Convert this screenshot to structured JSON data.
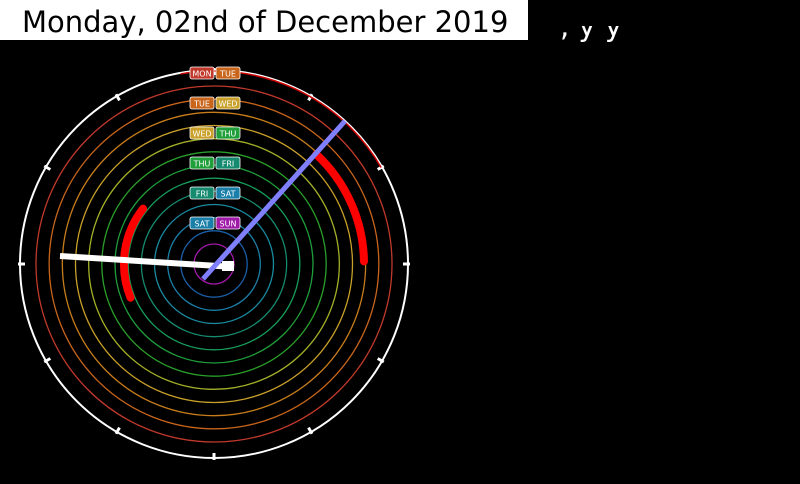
{
  "header": {
    "date_text": "Monday, 02nd of December 2019"
  },
  "clock": {
    "days": [
      {
        "day": "MON",
        "next": "TUE",
        "color": "#c0392b",
        "next_color": "#c8651b"
      },
      {
        "day": "TUE",
        "next": "WED",
        "color": "#c8651b",
        "next_color": "#c8a02a"
      },
      {
        "day": "WED",
        "next": "THU",
        "color": "#c8a02a",
        "next_color": "#1f9e3a"
      },
      {
        "day": "THU",
        "next": "FRI",
        "color": "#1f9e3a",
        "next_color": "#168a6e"
      },
      {
        "day": "FRI",
        "next": "SAT",
        "color": "#168a6e",
        "next_color": "#1a7fa8"
      },
      {
        "day": "SAT",
        "next": "SUN",
        "color": "#1a7fa8",
        "next_color": "#a01aa8"
      }
    ],
    "ring_colors": [
      "#c0392b",
      "#c8651b",
      "#c87d1b",
      "#c8a02a",
      "#a4b028",
      "#2aa02a",
      "#1f9e3a",
      "#169e5a",
      "#168a6e",
      "#1a8aa0",
      "#1a7fa8",
      "#1a5fa8",
      "#a01aa8"
    ],
    "hand_hour_color": "#ffffff",
    "hand_minute_color": "#8080ff",
    "arc_color": "#ff0000",
    "face_color": "#ffffff"
  }
}
